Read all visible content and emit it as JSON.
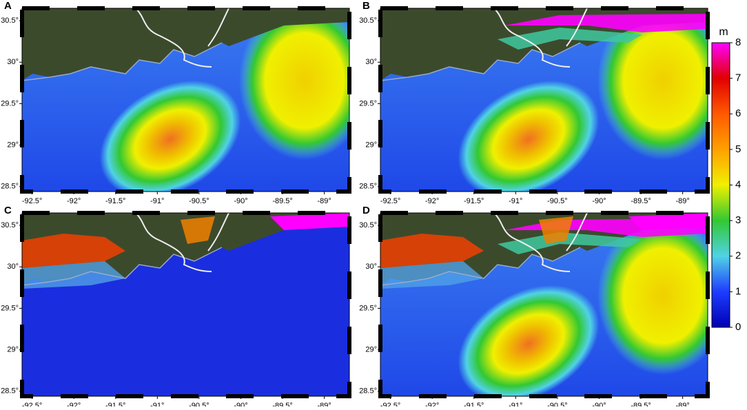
{
  "panels": [
    {
      "label": "A"
    },
    {
      "label": "B"
    },
    {
      "label": "C"
    },
    {
      "label": "D"
    }
  ],
  "x_axis": {
    "lim": [
      -92.62,
      -88.7
    ],
    "ticks": [
      {
        "value": -92.5,
        "label": "-92.5°"
      },
      {
        "value": -92,
        "label": "-92°"
      },
      {
        "value": -91.5,
        "label": "-91.5°"
      },
      {
        "value": -91,
        "label": "-91°"
      },
      {
        "value": -90.5,
        "label": "-90.5°"
      },
      {
        "value": -90,
        "label": "-90°"
      },
      {
        "value": -89.5,
        "label": "-89.5°"
      },
      {
        "value": -89,
        "label": "-89°"
      }
    ]
  },
  "y_axis": {
    "lim": [
      28.44,
      30.65
    ],
    "ticks": [
      {
        "value": 28.5,
        "label": "28.5°"
      },
      {
        "value": 29,
        "label": "29°"
      },
      {
        "value": 29.5,
        "label": "29.5°"
      },
      {
        "value": 30,
        "label": "30°"
      },
      {
        "value": 30.5,
        "label": "30.5°"
      }
    ]
  },
  "colorbar": {
    "label": "m",
    "lim": [
      0,
      8
    ],
    "ticks": [
      0,
      1,
      2,
      3,
      4,
      5,
      6,
      7,
      8
    ],
    "colors": [
      "#0000b4",
      "#1e3cff",
      "#50d2e6",
      "#32c832",
      "#f0f000",
      "#ffa000",
      "#ff5a00",
      "#e10000",
      "#ff00ff"
    ]
  }
}
